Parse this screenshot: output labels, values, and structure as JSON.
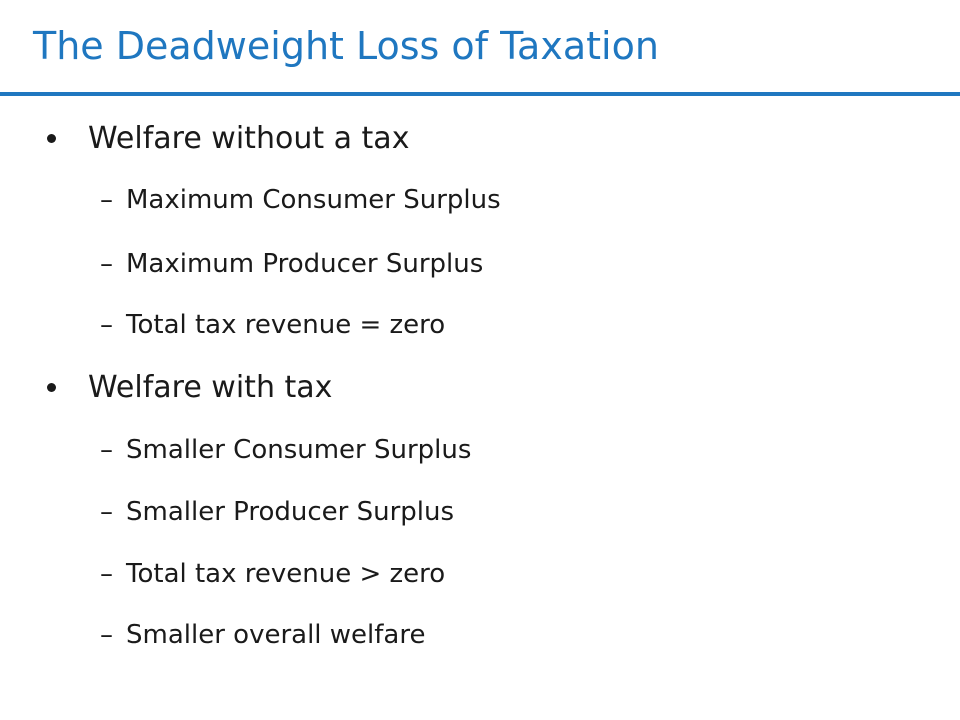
{
  "slide": {
    "title": "The Deadweight Loss of Taxation",
    "bullets": [
      {
        "text": "Welfare without a tax",
        "subitems": [
          "Maximum Consumer Surplus",
          "Maximum Producer Surplus",
          "Total tax revenue = zero"
        ]
      },
      {
        "text": "Welfare with tax",
        "subitems": [
          "Smaller Consumer Surplus",
          "Smaller Producer Surplus",
          "Total tax revenue > zero",
          "Smaller overall welfare"
        ]
      }
    ],
    "sub_marker": "–",
    "colors": {
      "title": "#1f77c0",
      "rule": "#1f77c0",
      "text": "#1a1a1a",
      "background": "#ffffff"
    }
  }
}
